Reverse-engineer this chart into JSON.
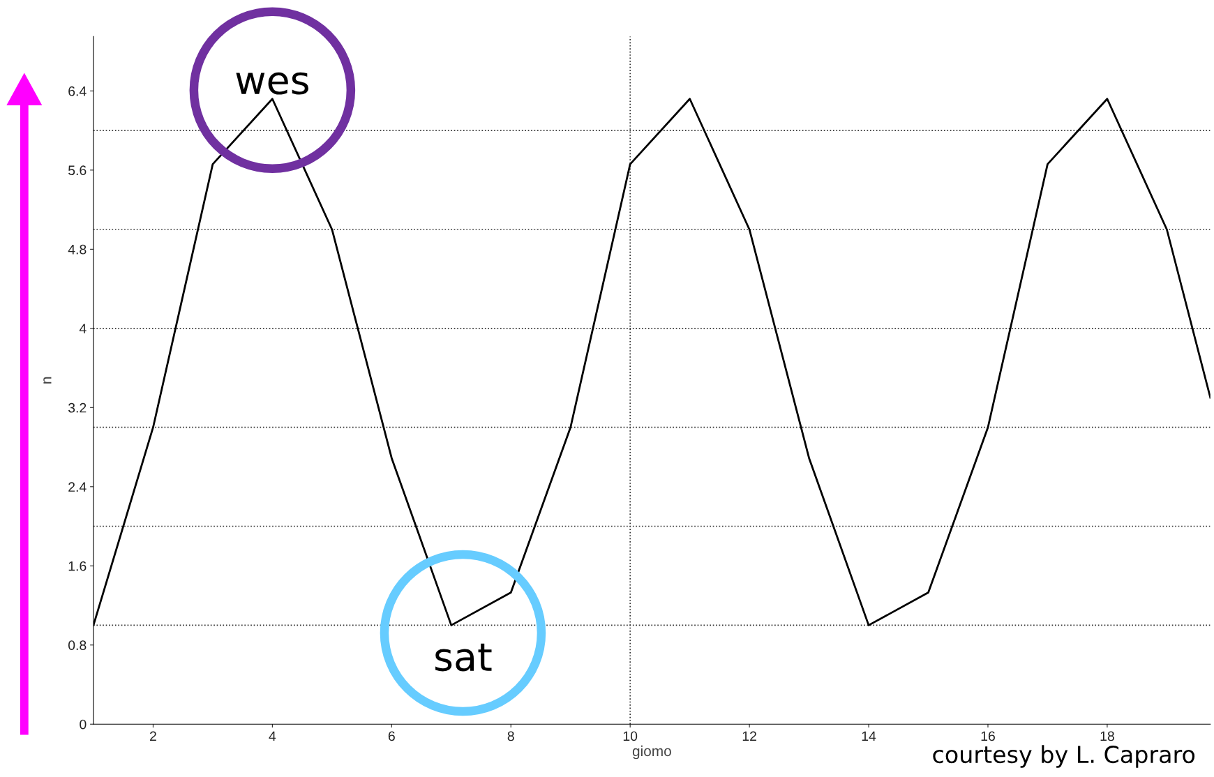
{
  "chart_data": {
    "type": "line",
    "xlabel": "giomo",
    "ylabel": "n",
    "x": [
      1,
      2,
      3,
      4,
      5,
      6,
      7,
      8,
      9,
      10,
      11,
      12,
      13,
      14,
      15,
      16,
      17,
      18,
      19,
      19.73
    ],
    "series": [
      {
        "color": "#000000",
        "values": [
          1.0,
          3.0,
          5.66,
          6.32,
          5.0,
          2.69,
          1.0,
          1.33,
          3.0,
          5.66,
          6.32,
          5.0,
          2.69,
          1.0,
          1.33,
          3.0,
          5.66,
          6.32,
          5.0,
          3.3
        ]
      }
    ],
    "xlim": [
      1,
      19.73
    ],
    "ylim": [
      0,
      6.95
    ],
    "xticks": [
      2,
      4,
      6,
      8,
      10,
      12,
      14,
      16,
      18
    ],
    "yticks": [
      0,
      0.8,
      1.6,
      2.4,
      3.2,
      4,
      4.8,
      5.6,
      6.4
    ],
    "grid": false,
    "legend": false,
    "marker": "none",
    "line_style": "solid",
    "ref_lines": [
      {
        "axis": "y",
        "value": 1,
        "line_style": "dotted"
      },
      {
        "axis": "y",
        "value": 2,
        "line_style": "dotted"
      },
      {
        "axis": "y",
        "value": 3,
        "line_style": "dotted"
      },
      {
        "axis": "y",
        "value": 4,
        "line_style": "dotted"
      },
      {
        "axis": "y",
        "value": 5,
        "line_style": "dotted"
      },
      {
        "axis": "y",
        "value": 6,
        "line_style": "dotted"
      },
      {
        "axis": "x",
        "value": 10,
        "line_style": "dotted"
      }
    ],
    "annotations": [
      {
        "text": "wes",
        "x": 4,
        "y": 6.32
      },
      {
        "text": "sat",
        "x": 7,
        "y": 1.0
      },
      "courtesy by L. Capraro"
    ]
  }
}
